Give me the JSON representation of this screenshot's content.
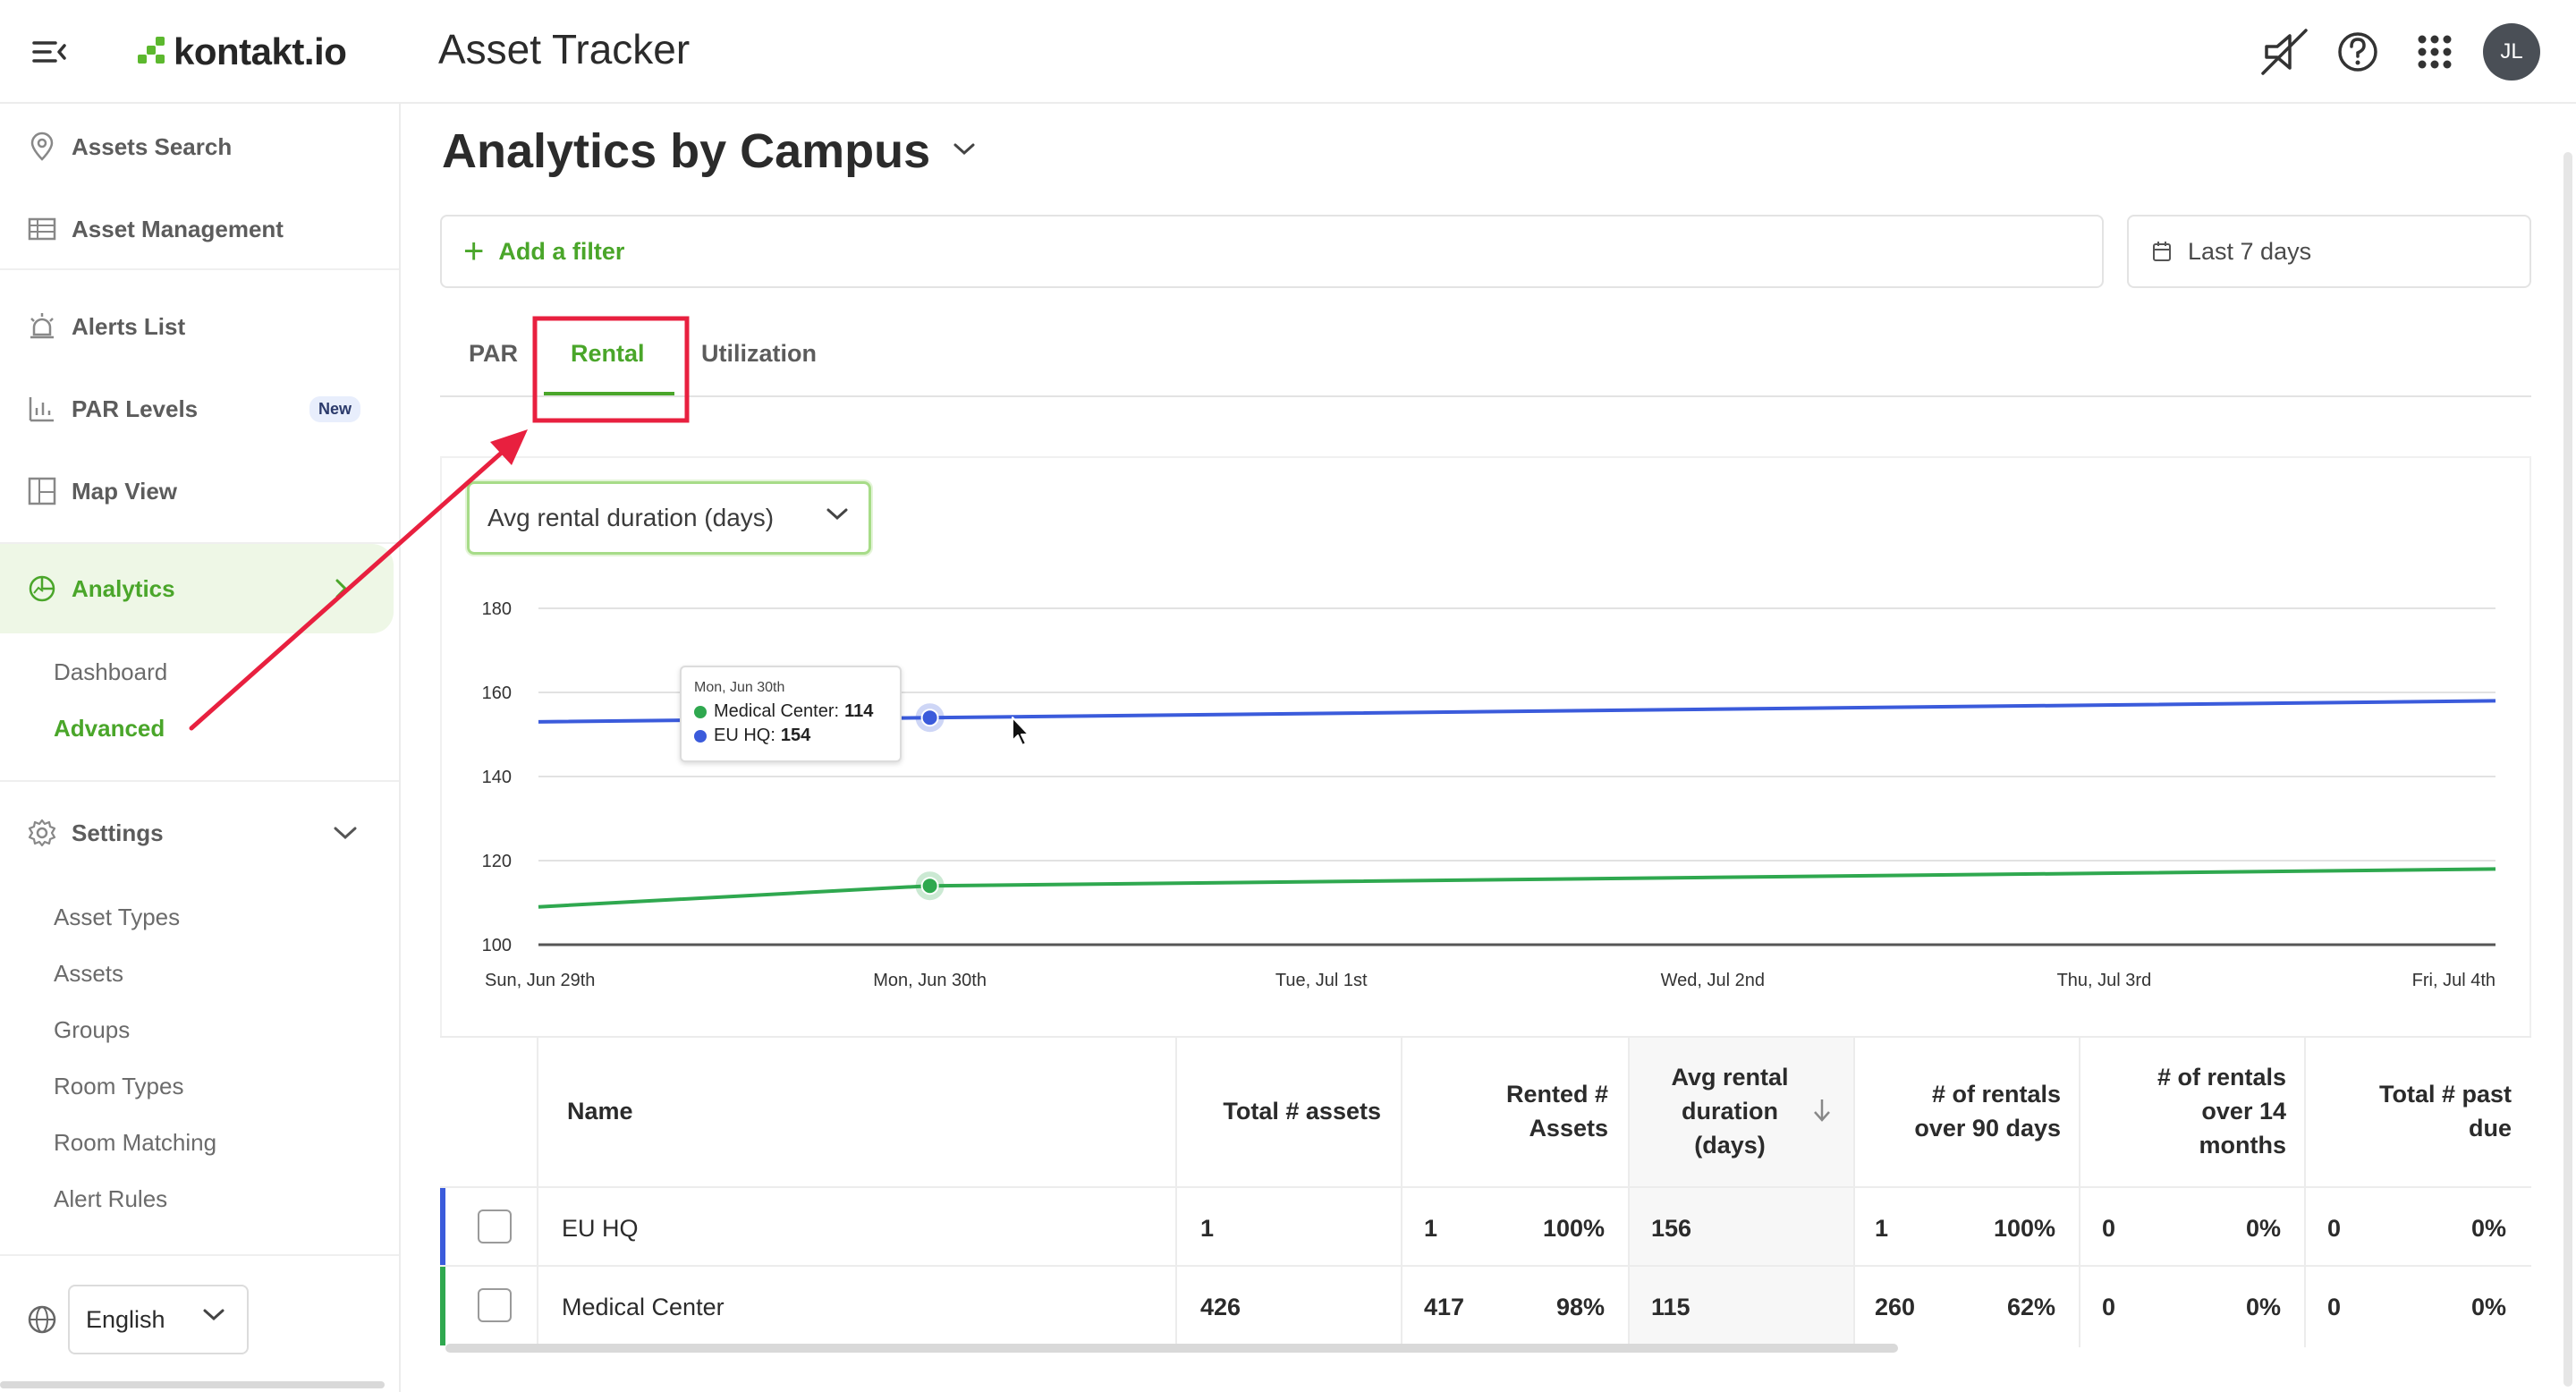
{
  "header": {
    "logo_text": "kontakt.io",
    "app_title": "Asset Tracker",
    "avatar_initials": "JL",
    "icons": [
      "menu-collapse-icon",
      "notifications-off-icon",
      "help-icon",
      "app-grid-icon"
    ]
  },
  "sidebar": {
    "items": [
      {
        "label": "Assets Search",
        "icon": "location-pin-icon"
      },
      {
        "label": "Asset Management",
        "icon": "table-icon"
      },
      {
        "label": "Alerts List",
        "icon": "alarm-icon"
      },
      {
        "label": "PAR Levels",
        "icon": "bar-chart-icon",
        "badge": "New"
      },
      {
        "label": "Map View",
        "icon": "map-layout-icon"
      },
      {
        "label": "Analytics",
        "icon": "analytics-icon",
        "active": true
      },
      {
        "label": "Settings",
        "icon": "gear-icon"
      }
    ],
    "analytics_sub": [
      {
        "label": "Dashboard"
      },
      {
        "label": "Advanced",
        "active": true
      }
    ],
    "settings_sub": [
      {
        "label": "Asset Types"
      },
      {
        "label": "Assets"
      },
      {
        "label": "Groups"
      },
      {
        "label": "Room Types"
      },
      {
        "label": "Room Matching"
      },
      {
        "label": "Alert Rules"
      }
    ],
    "language": "English"
  },
  "main": {
    "page_title": "Analytics by Campus",
    "add_filter_label": "Add a filter",
    "date_range": "Last 7 days",
    "tabs": [
      {
        "label": "PAR"
      },
      {
        "label": "Rental",
        "active": true
      },
      {
        "label": "Utilization"
      }
    ],
    "metric_select": "Avg rental duration (days)"
  },
  "tooltip": {
    "date": "Mon, Jun 30th",
    "rows": [
      {
        "name": "Medical Center",
        "value": "114"
      },
      {
        "name": "EU HQ",
        "value": "154"
      }
    ]
  },
  "chart_data": {
    "type": "line",
    "x": [
      "Sun, Jun 29th",
      "Mon, Jun 30th",
      "Tue, Jul 1st",
      "Wed, Jul 2nd",
      "Thu, Jul 3rd",
      "Fri, Jul 4th"
    ],
    "yticks": [
      "100",
      "120",
      "140",
      "160",
      "180"
    ],
    "ylim": [
      100,
      180
    ],
    "grid": true,
    "series": [
      {
        "name": "EU HQ",
        "color": "#3b5bdb",
        "values": [
          153,
          154,
          155,
          156,
          157,
          158
        ]
      },
      {
        "name": "Medical Center",
        "color": "#2fa84f",
        "values": [
          109,
          114,
          115,
          116,
          117,
          118
        ]
      }
    ],
    "highlight_index": 1
  },
  "table": {
    "headers": {
      "name": "Name",
      "total_assets": "Total # assets",
      "rented_l1": "Rented #",
      "rented_l2": "Assets",
      "avg_l1": "Avg rental",
      "avg_l2": "duration",
      "avg_l3": "(days)",
      "over90_l1": "# of rentals",
      "over90_l2": "over 90 days",
      "over14_l1": "# of rentals",
      "over14_l2": "over 14",
      "over14_l3": "months",
      "pastdue_l1": "Total # past",
      "pastdue_l2": "due"
    },
    "rows": [
      {
        "name": "EU HQ",
        "color": "#3b5bdb",
        "total": "1",
        "rented": "1",
        "rented_pct": "100%",
        "avg": "156",
        "over90": "1",
        "over90_pct": "100%",
        "over14": "0",
        "over14_pct": "0%",
        "pastdue": "0",
        "pastdue_pct": "0%"
      },
      {
        "name": "Medical Center",
        "color": "#2fa84f",
        "total": "426",
        "rented": "417",
        "rented_pct": "98%",
        "avg": "115",
        "over90": "260",
        "over90_pct": "62%",
        "over14": "0",
        "over14_pct": "0%",
        "pastdue": "0",
        "pastdue_pct": "0%"
      }
    ]
  },
  "colors": {
    "accent": "#4aa62a",
    "annotation": "#e8203f"
  }
}
